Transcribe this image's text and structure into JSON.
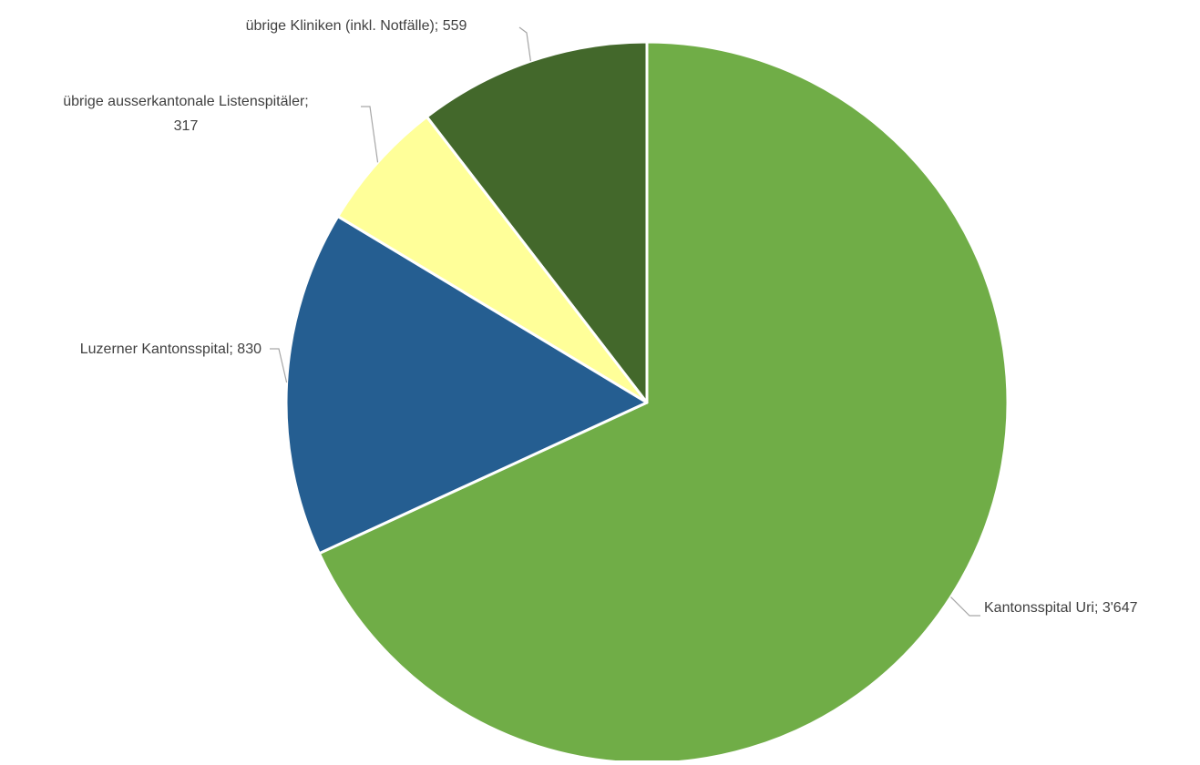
{
  "chart_data": {
    "type": "pie",
    "title": "",
    "start_angle_deg": 0,
    "direction": "clockwise",
    "slices": [
      {
        "label": "Kantonsspital Uri",
        "value": 3647,
        "display": "Kantonsspital Uri; 3'647",
        "color": "#70AD47"
      },
      {
        "label": "Luzerner Kantonsspital",
        "value": 830,
        "display": "Luzerner Kantonsspital; 830",
        "color": "#255E91"
      },
      {
        "label": "übrige ausserkantonale Listenspitäler",
        "value": 317,
        "display_lines": [
          "übrige ausserkantonale Listenspitäler;",
          "317"
        ],
        "color": "#FFFF99"
      },
      {
        "label": "übrige Kliniken (inkl. Notfälle)",
        "value": 559,
        "display": "übrige Kliniken (inkl. Notfälle); 559",
        "color": "#43682B"
      }
    ],
    "legend": "none",
    "data_labels": "outside-with-leader-lines"
  }
}
